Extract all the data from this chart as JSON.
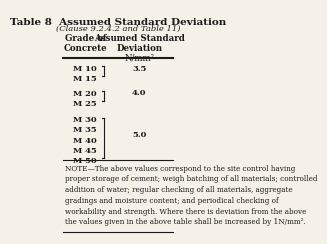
{
  "title": "Table 8  Assumed Standard Deviation",
  "subtitle": "(Clause 9.2.4.2 and Table 11)",
  "col1_header": [
    "Grade of",
    "Concrete"
  ],
  "col2_header": [
    "Assumed Standard",
    "Deviation",
    "N/mm²"
  ],
  "rows": [
    {
      "grades": [
        "M 10",
        "M 15"
      ],
      "value": "3.5",
      "bracket": true
    },
    {
      "grades": [
        "M 20",
        "M 25"
      ],
      "value": "4.0",
      "bracket": true
    },
    {
      "grades": [
        "M 30",
        "M 35",
        "M 40",
        "M 45",
        "M 50"
      ],
      "value": "5.0",
      "bracket": true
    }
  ],
  "note": "NOTE—The above values correspond to the site control having proper storage of cement; weigh batching of all materials; controlled addition of water; regular checking of all materials, aggregate gradings and moisture content; and periodical checking of workability and strength. Where there is deviation from the above the values given in the above table shall be increased by 1N/mm².",
  "bg_color": "#f5f0e8",
  "text_color": "#1a1a1a",
  "title_fontsize": 7.5,
  "subtitle_fontsize": 6.0,
  "header_fontsize": 6.2,
  "body_fontsize": 6.0,
  "note_fontsize": 5.2
}
